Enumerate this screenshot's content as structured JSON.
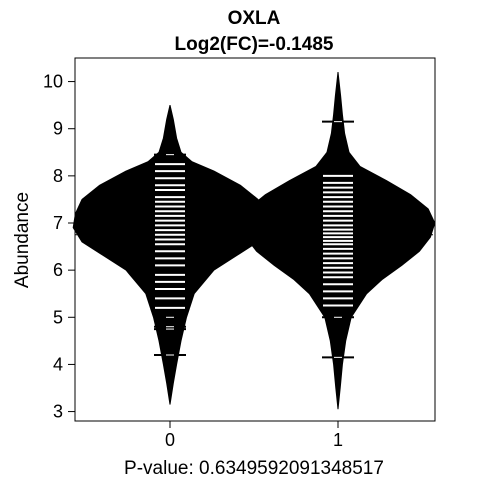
{
  "chart_data": {
    "type": "beanplot",
    "title": "OXLA",
    "subtitle": "Log2(FC)=-0.1485",
    "xlabel": "P-value: 0.6349592091348517",
    "ylabel": "Abundance",
    "ylim": [
      2.8,
      10.5
    ],
    "yticks": [
      3,
      4,
      5,
      6,
      7,
      8,
      9,
      10
    ],
    "overall_mean": 6.75,
    "grid": false,
    "legend": "none",
    "fill_color": "#000000",
    "line_color": "#ffffff",
    "categories": [
      "0",
      "1"
    ],
    "groups": [
      {
        "label": "0",
        "mean": 6.85,
        "density": [
          [
            3.15,
            0.0
          ],
          [
            3.6,
            0.015
          ],
          [
            4.0,
            0.03
          ],
          [
            4.5,
            0.05
          ],
          [
            5.0,
            0.075
          ],
          [
            5.5,
            0.11
          ],
          [
            6.0,
            0.2
          ],
          [
            6.3,
            0.3
          ],
          [
            6.6,
            0.4
          ],
          [
            6.9,
            0.44
          ],
          [
            7.2,
            0.43
          ],
          [
            7.5,
            0.4
          ],
          [
            7.8,
            0.32
          ],
          [
            8.1,
            0.2
          ],
          [
            8.3,
            0.1
          ],
          [
            8.5,
            0.05
          ],
          [
            8.8,
            0.03
          ],
          [
            9.2,
            0.015
          ],
          [
            9.5,
            0.0
          ]
        ],
        "observations": [
          4.2,
          4.75,
          4.8,
          5.0,
          5.2,
          5.4,
          5.6,
          5.75,
          5.9,
          6.1,
          6.25,
          6.4,
          6.55,
          6.65,
          6.75,
          6.85,
          6.95,
          7.05,
          7.15,
          7.25,
          7.35,
          7.45,
          7.55,
          7.7,
          7.8,
          7.95,
          8.1,
          8.25,
          8.45
        ]
      },
      {
        "label": "1",
        "mean": 6.7,
        "density": [
          [
            3.05,
            0.0
          ],
          [
            3.5,
            0.01
          ],
          [
            4.0,
            0.02
          ],
          [
            4.5,
            0.035
          ],
          [
            5.0,
            0.06
          ],
          [
            5.5,
            0.13
          ],
          [
            5.8,
            0.2
          ],
          [
            6.1,
            0.29
          ],
          [
            6.4,
            0.37
          ],
          [
            6.7,
            0.42
          ],
          [
            7.0,
            0.44
          ],
          [
            7.3,
            0.41
          ],
          [
            7.6,
            0.33
          ],
          [
            7.9,
            0.22
          ],
          [
            8.2,
            0.1
          ],
          [
            8.5,
            0.05
          ],
          [
            8.9,
            0.03
          ],
          [
            9.3,
            0.02
          ],
          [
            9.7,
            0.012
          ],
          [
            10.2,
            0.0
          ]
        ],
        "observations": [
          4.15,
          5.0,
          5.25,
          5.4,
          5.55,
          5.7,
          5.85,
          5.95,
          6.05,
          6.15,
          6.25,
          6.35,
          6.45,
          6.55,
          6.62,
          6.7,
          6.78,
          6.86,
          6.95,
          7.05,
          7.15,
          7.25,
          7.35,
          7.45,
          7.55,
          7.65,
          7.75,
          7.85,
          8.0,
          9.15
        ]
      }
    ]
  }
}
